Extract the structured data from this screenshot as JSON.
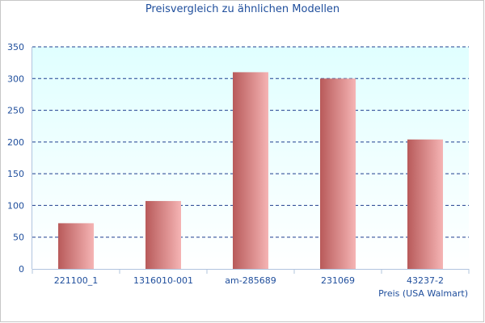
{
  "chart_data": {
    "type": "bar",
    "title": "Preisvergleich zu ähnlichen Modellen",
    "categories": [
      "221100_1",
      "1316010-001",
      "am-285689",
      "231069",
      "43237-2"
    ],
    "series": [
      {
        "name": "Preis (USA Walmart)",
        "values": [
          72,
          107,
          310,
          300,
          204
        ]
      }
    ],
    "ylim": [
      0,
      350
    ],
    "yticks": [
      0,
      50,
      100,
      150,
      200,
      250,
      300,
      350
    ],
    "grid": true,
    "legend": "bottom-right",
    "colors": {
      "bar_dark": "#b85a5a",
      "bar_light": "#f5b4b4",
      "plot_bg_top": "#e0ffff",
      "plot_bg_bottom": "#ffffff",
      "grid": "#1f3f8f",
      "text": "#1f4e9c"
    }
  }
}
